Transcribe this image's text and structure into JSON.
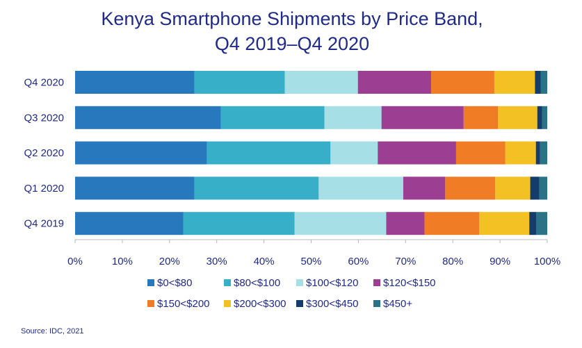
{
  "chart_data": {
    "type": "bar",
    "orientation": "horizontal",
    "stacked": true,
    "title_line1": "Kenya Smartphone Shipments by Price Band,",
    "title_line2": "Q4 2019–Q4 2020",
    "categories": [
      "Q4 2020",
      "Q3 2020",
      "Q2 2020",
      "Q1 2020",
      "Q4 2019"
    ],
    "xlim": [
      0,
      100
    ],
    "x_ticks": [
      "0%",
      "10%",
      "20%",
      "30%",
      "40%",
      "50%",
      "60%",
      "70%",
      "80%",
      "90%",
      "100%"
    ],
    "grid": false,
    "legend_position": "bottom",
    "series": [
      {
        "name": "$0<$80",
        "color": "#2878be",
        "values": [
          25.3,
          30.9,
          27.9,
          25.3,
          22.9
        ]
      },
      {
        "name": "$80<$100",
        "color": "#38afc9",
        "values": [
          19.1,
          21.9,
          26.2,
          26.3,
          23.6
        ]
      },
      {
        "name": "$100<$120",
        "color": "#a6dfe6",
        "values": [
          15.5,
          12.1,
          10.0,
          17.9,
          19.4
        ]
      },
      {
        "name": "$120<$150",
        "color": "#9c3f92",
        "values": [
          15.5,
          17.4,
          16.6,
          8.9,
          8.1
        ]
      },
      {
        "name": "$150<$200",
        "color": "#f07d25",
        "values": [
          13.4,
          7.3,
          10.4,
          10.6,
          11.6
        ]
      },
      {
        "name": "$200<$300",
        "color": "#f4c124",
        "values": [
          8.6,
          8.3,
          6.5,
          7.4,
          10.6
        ]
      },
      {
        "name": "$300<$450",
        "color": "#143d6b",
        "values": [
          1.2,
          1.0,
          0.9,
          1.9,
          1.5
        ]
      },
      {
        "name": "$450+",
        "color": "#2a7286",
        "values": [
          1.4,
          1.1,
          1.5,
          1.7,
          2.3
        ]
      }
    ]
  },
  "source": "Source: IDC, 2021"
}
